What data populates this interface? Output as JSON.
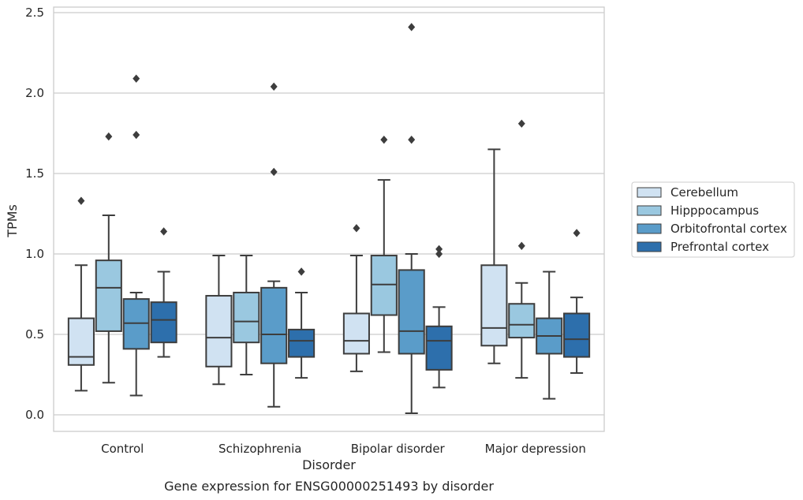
{
  "chart_data": {
    "type": "box",
    "xlabel": "Disorder",
    "ylabel": "TPMs",
    "caption": "Gene expression for ENSG00000251493 by disorder",
    "ylim": [
      -0.1,
      2.55
    ],
    "yticks": [
      0.0,
      0.5,
      1.0,
      1.5,
      2.0,
      2.5
    ],
    "ytick_labels": [
      "0.0",
      "0.5",
      "1.0",
      "1.5",
      "2.0",
      "2.5"
    ],
    "grid": "horizontal",
    "legend_position": "right",
    "categories": [
      "Control",
      "Schizophrenia",
      "Bipolar disorder",
      "Major depression"
    ],
    "series": [
      {
        "name": "Cerebellum",
        "color": "#d0e2f2",
        "boxes": [
          {
            "whislo": 0.15,
            "q1": 0.31,
            "med": 0.36,
            "q3": 0.6,
            "whishi": 0.93,
            "fliers": [
              1.33
            ]
          },
          {
            "whislo": 0.19,
            "q1": 0.3,
            "med": 0.48,
            "q3": 0.74,
            "whishi": 0.99,
            "fliers": []
          },
          {
            "whislo": 0.27,
            "q1": 0.38,
            "med": 0.46,
            "q3": 0.63,
            "whishi": 0.99,
            "fliers": [
              1.16
            ]
          },
          {
            "whislo": 0.32,
            "q1": 0.43,
            "med": 0.54,
            "q3": 0.93,
            "whishi": 1.65,
            "fliers": []
          }
        ]
      },
      {
        "name": "Hipppocampus",
        "color": "#9ac8e0",
        "boxes": [
          {
            "whislo": 0.2,
            "q1": 0.52,
            "med": 0.79,
            "q3": 0.96,
            "whishi": 1.24,
            "fliers": [
              1.73
            ]
          },
          {
            "whislo": 0.25,
            "q1": 0.45,
            "med": 0.58,
            "q3": 0.76,
            "whishi": 0.99,
            "fliers": []
          },
          {
            "whislo": 0.39,
            "q1": 0.62,
            "med": 0.81,
            "q3": 0.99,
            "whishi": 1.46,
            "fliers": [
              1.71
            ]
          },
          {
            "whislo": 0.23,
            "q1": 0.48,
            "med": 0.56,
            "q3": 0.69,
            "whishi": 0.82,
            "fliers": [
              1.05,
              1.81
            ]
          }
        ]
      },
      {
        "name": "Orbitofrontal cortex",
        "color": "#5a9cc9",
        "boxes": [
          {
            "whislo": 0.12,
            "q1": 0.41,
            "med": 0.57,
            "q3": 0.72,
            "whishi": 0.76,
            "fliers": [
              1.74,
              2.09
            ]
          },
          {
            "whislo": 0.05,
            "q1": 0.32,
            "med": 0.5,
            "q3": 0.79,
            "whishi": 0.83,
            "fliers": [
              1.51,
              2.04
            ]
          },
          {
            "whislo": 0.01,
            "q1": 0.38,
            "med": 0.52,
            "q3": 0.9,
            "whishi": 1.0,
            "fliers": [
              1.71,
              2.41
            ]
          },
          {
            "whislo": 0.1,
            "q1": 0.38,
            "med": 0.49,
            "q3": 0.6,
            "whishi": 0.89,
            "fliers": []
          }
        ]
      },
      {
        "name": "Prefrontal cortex",
        "color": "#2d6fac",
        "boxes": [
          {
            "whislo": 0.36,
            "q1": 0.45,
            "med": 0.59,
            "q3": 0.7,
            "whishi": 0.89,
            "fliers": [
              1.14
            ]
          },
          {
            "whislo": 0.23,
            "q1": 0.36,
            "med": 0.46,
            "q3": 0.53,
            "whishi": 0.76,
            "fliers": [
              0.89
            ]
          },
          {
            "whislo": 0.17,
            "q1": 0.28,
            "med": 0.46,
            "q3": 0.55,
            "whishi": 0.67,
            "fliers": [
              1.0,
              1.03
            ]
          },
          {
            "whislo": 0.26,
            "q1": 0.36,
            "med": 0.47,
            "q3": 0.63,
            "whishi": 0.73,
            "fliers": [
              1.13
            ]
          }
        ]
      }
    ]
  }
}
